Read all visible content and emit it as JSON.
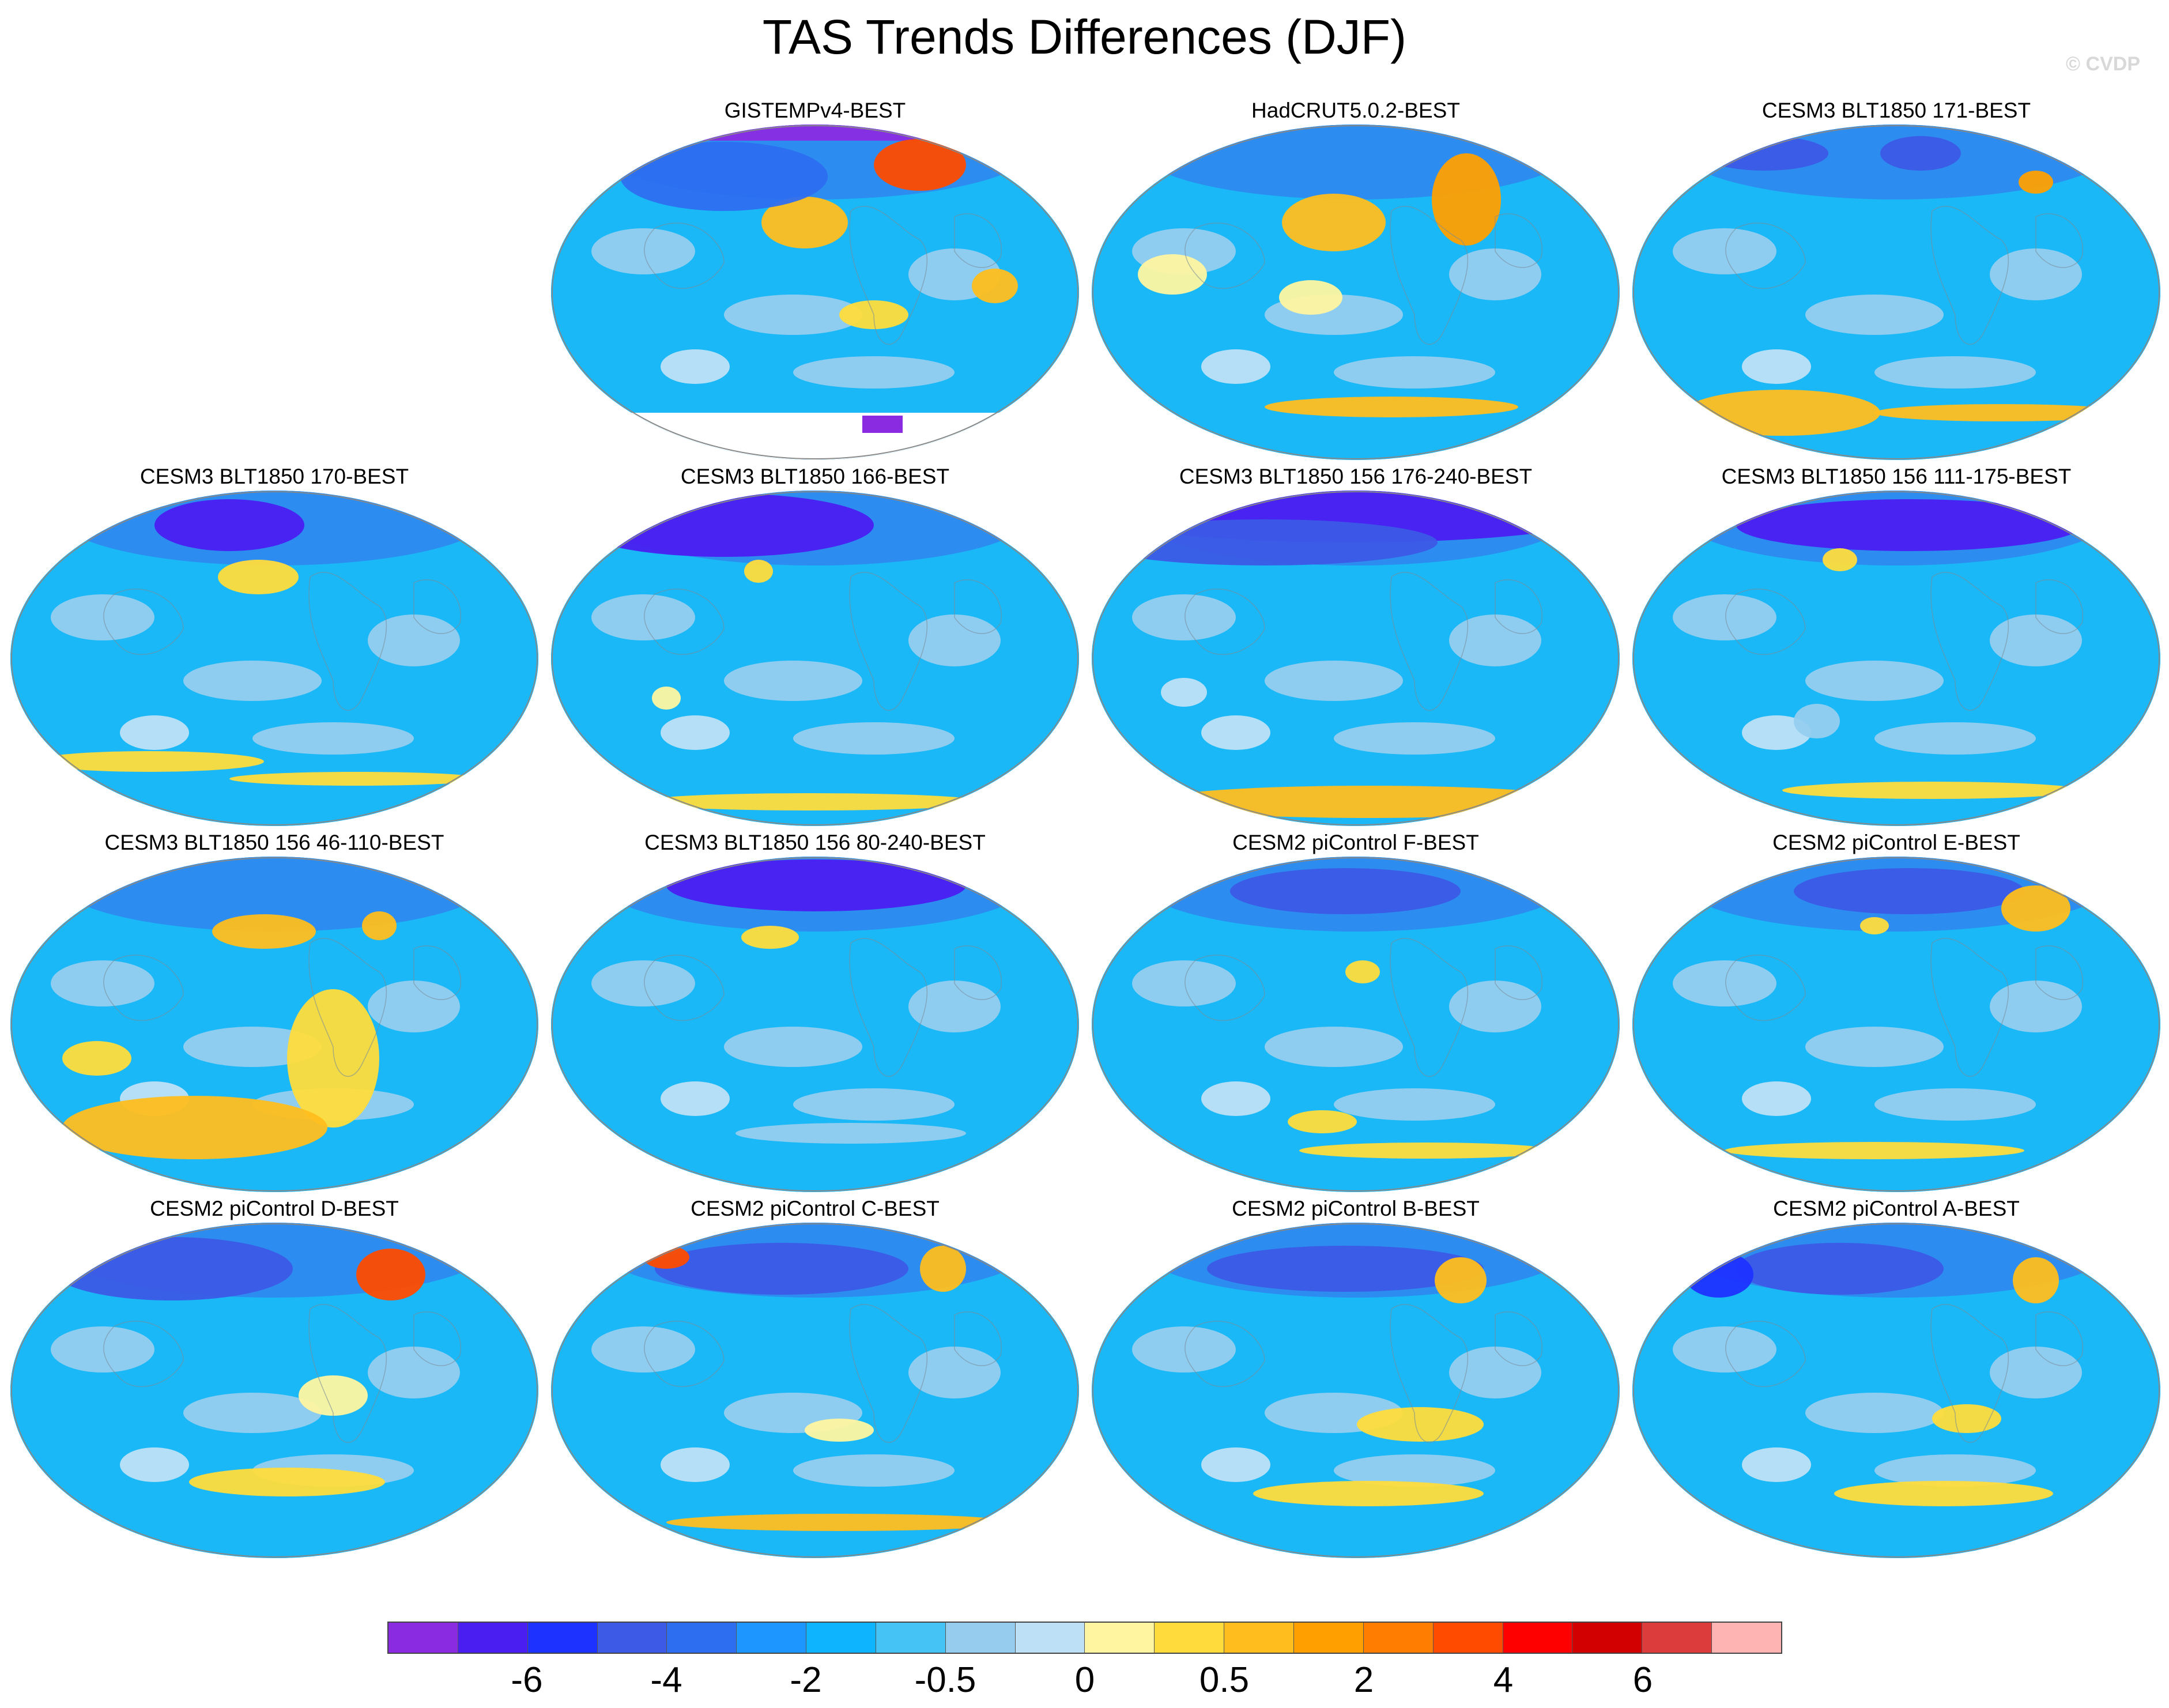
{
  "title": "TAS Trends Differences (DJF)",
  "watermark": "© CVDP",
  "panels": [
    {
      "title": "GISTEMPv4-BEST"
    },
    {
      "title": "HadCRUT5.0.2-BEST"
    },
    {
      "title": "CESM3 BLT1850 171-BEST"
    },
    {
      "title": "CESM3 BLT1850 170-BEST"
    },
    {
      "title": "CESM3 BLT1850 166-BEST"
    },
    {
      "title": "CESM3 BLT1850 156 176-240-BEST"
    },
    {
      "title": "CESM3 BLT1850 156 111-175-BEST"
    },
    {
      "title": "CESM3 BLT1850 156 46-110-BEST"
    },
    {
      "title": "CESM3 BLT1850 156 80-240-BEST"
    },
    {
      "title": "CESM2 piControl F-BEST"
    },
    {
      "title": "CESM2 piControl E-BEST"
    },
    {
      "title": "CESM2 piControl D-BEST"
    },
    {
      "title": "CESM2 piControl C-BEST"
    },
    {
      "title": "CESM2 piControl B-BEST"
    },
    {
      "title": "CESM2 piControl A-BEST"
    }
  ],
  "colorbar": {
    "colors": [
      "#8a2be2",
      "#4a1ef0",
      "#1e32ff",
      "#3c5ae6",
      "#2d6ef0",
      "#1e96ff",
      "#0fb4ff",
      "#46c3f5",
      "#96cdef",
      "#bde0f7",
      "#fff5a0",
      "#ffdc3c",
      "#ffbe1e",
      "#ffa000",
      "#ff7d00",
      "#ff4b00",
      "#ff0000",
      "#d20000",
      "#dc3c3c",
      "#ffb4b4"
    ],
    "labels": [
      "-6",
      "-4",
      "-2",
      "-0.5",
      "0",
      "0.5",
      "2",
      "4",
      "6"
    ],
    "label_boundaries": [
      2,
      4,
      6,
      8,
      10,
      12,
      14,
      16,
      18
    ]
  },
  "chart_data": {
    "type": "heatmap",
    "title": "TAS Trends Differences (DJF)",
    "projection": "global map (Robinson-like ellipse)",
    "variable": "TAS trend difference, DJF",
    "contour_levels": [
      -8,
      -7,
      -6,
      -5,
      -4,
      -3,
      -2,
      -1,
      -0.5,
      -0.25,
      0,
      0.25,
      0.5,
      1,
      2,
      3,
      4,
      5,
      6,
      7
    ],
    "colorbar_tick_labels": [
      "-6",
      "-4",
      "-2",
      "-0.5",
      "0",
      "0.5",
      "2",
      "4",
      "6"
    ],
    "panel_count": 15,
    "panel_titles": [
      "GISTEMPv4-BEST",
      "HadCRUT5.0.2-BEST",
      "CESM3 BLT1850 171-BEST",
      "CESM3 BLT1850 170-BEST",
      "CESM3 BLT1850 166-BEST",
      "CESM3 BLT1850 156 176-240-BEST",
      "CESM3 BLT1850 156 111-175-BEST",
      "CESM3 BLT1850 156 46-110-BEST",
      "CESM3 BLT1850 156 80-240-BEST",
      "CESM2 piControl F-BEST",
      "CESM2 piControl E-BEST",
      "CESM2 piControl D-BEST",
      "CESM2 piControl C-BEST",
      "CESM2 piControl B-BEST",
      "CESM2 piControl A-BEST"
    ],
    "dominant_value": "-2 to -0.5 (light blue) over most of the globe"
  }
}
